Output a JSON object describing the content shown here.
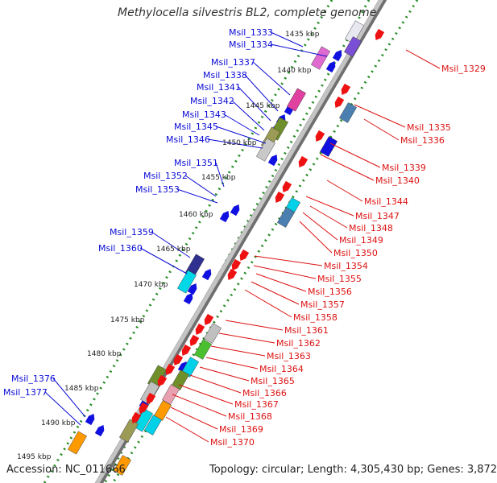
{
  "title": "Methylocella silvestris BL2, complete genome",
  "accession": "Accession: NC_011666",
  "topology": "Topology: circular; Length: 4,305,430 bp; Genes: 3,872",
  "colors": {
    "forward_gene": "#1010e0",
    "reverse_gene": "#ee1111",
    "forward_label": "#0b0bd6",
    "reverse_label": "#dd1111",
    "backbone": "#9a9a9a",
    "tick_dots": "#228b22"
  },
  "scale_labels": [
    "1435 kbp",
    "1440 kbp",
    "1445 kbp",
    "1450 kbp",
    "1455 kbp",
    "1460 kbp",
    "1465 kbp",
    "1470 kbp",
    "1475 kbp",
    "1480 kbp",
    "1485 kbp",
    "1490 kbp",
    "1495 kbp"
  ],
  "forward_genes": [
    "Msil_1333",
    "Msil_1334",
    "Msil_1337",
    "Msil_1338",
    "Msil_1341",
    "Msil_1342",
    "Msil_1343",
    "Msil_1345",
    "Msil_1346",
    "Msil_1351",
    "Msil_1352",
    "Msil_1353",
    "Msil_1359",
    "Msil_1360",
    "Msil_1376",
    "Msil_1377"
  ],
  "reverse_genes": [
    "Msil_1329",
    "Msil_1335",
    "Msil_1336",
    "Msil_1339",
    "Msil_1340",
    "Msil_1344",
    "Msil_1347",
    "Msil_1348",
    "Msil_1349",
    "Msil_1350",
    "Msil_1354",
    "Msil_1355",
    "Msil_1356",
    "Msil_1357",
    "Msil_1358",
    "Msil_1361",
    "Msil_1362",
    "Msil_1363",
    "Msil_1364",
    "Msil_1365",
    "Msil_1366",
    "Msil_1367",
    "Msil_1368",
    "Msil_1369",
    "Msil_1370"
  ]
}
